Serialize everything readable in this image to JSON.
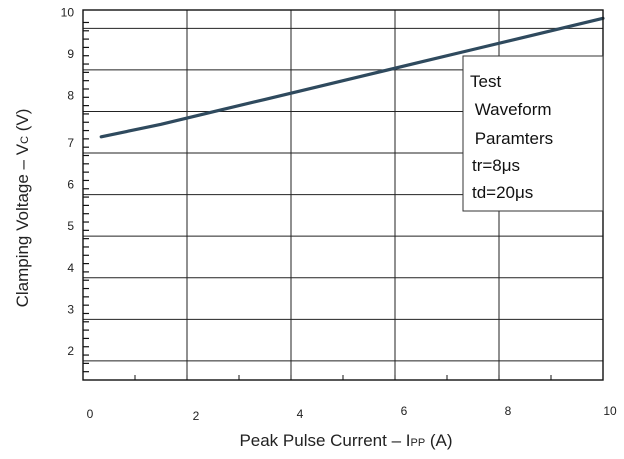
{
  "chart_data": {
    "type": "line",
    "title": "",
    "xlabel": {
      "main": "Peak Pulse Current",
      "dash": " – ",
      "var": "I",
      "sub": "PP",
      "unit": " (A)"
    },
    "ylabel": {
      "main": "Clamping Voltage",
      "dash": " – ",
      "var": "V",
      "sub": "C",
      "unit": " (V)"
    },
    "xlim": [
      0,
      10
    ],
    "ylim": [
      1.3,
      10.2
    ],
    "x_ticks": [
      0,
      2,
      4,
      6,
      8,
      10
    ],
    "y_ticks": [
      2,
      3,
      4,
      5,
      6,
      7,
      8,
      9,
      10
    ],
    "grid": true,
    "series": [
      {
        "color": "#2f4a5e",
        "x": [
          0.35,
          1.5,
          2.5,
          3.5,
          4.5,
          5.5,
          6.5,
          7.5,
          8.5,
          9.5,
          10.0
        ],
        "y": [
          7.15,
          7.45,
          7.75,
          8.05,
          8.35,
          8.65,
          8.95,
          9.25,
          9.55,
          9.85,
          10.0
        ]
      }
    ],
    "annotation": {
      "lines": [
        "Test",
        " Waveform",
        " Paramters",
        "tr=8μs",
        "td=20μs"
      ],
      "placement": "right"
    }
  }
}
